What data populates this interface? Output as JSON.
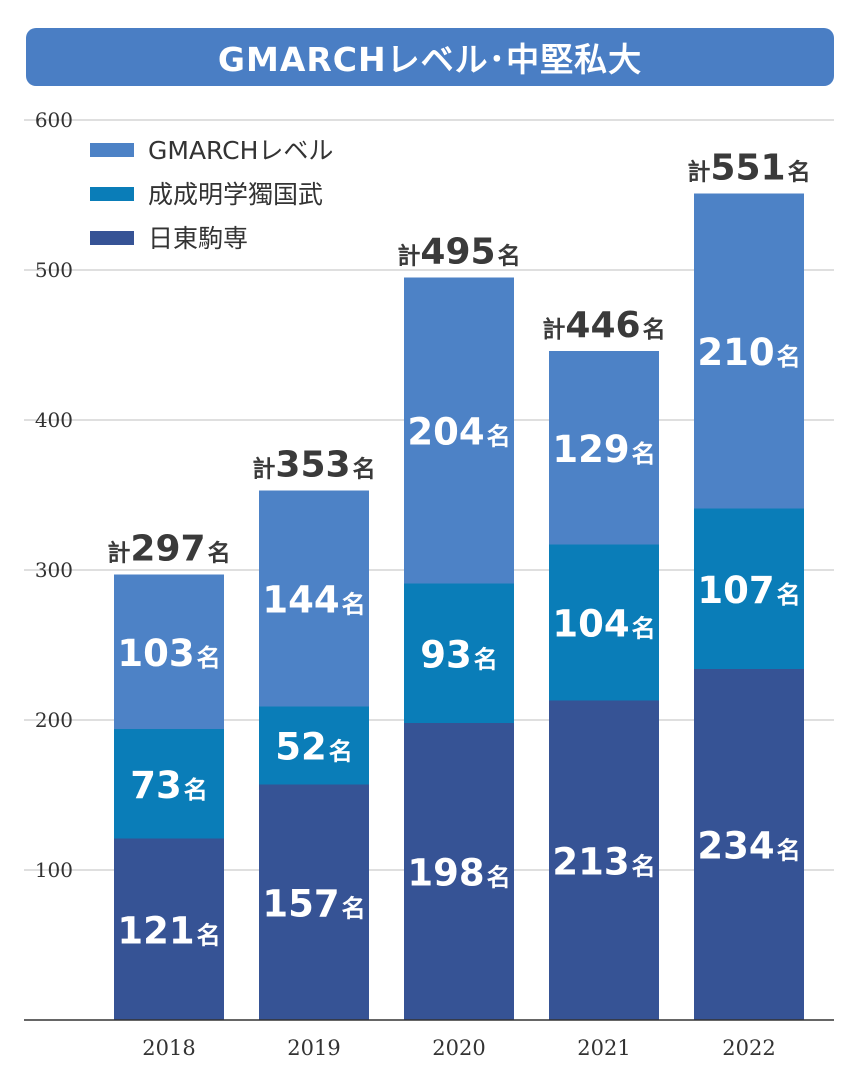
{
  "title": "GMARCHレベル･中堅私大",
  "colors": {
    "title_bg": "#4a7ec4",
    "gmarch": "#4d82c6",
    "seisei": "#0a7db8",
    "nittoukomasen": "#365395",
    "grid": "#cccccc",
    "axis": "#333333"
  },
  "chart_data": {
    "type": "bar",
    "stacked": true,
    "categories": [
      "2018",
      "2019",
      "2020",
      "2021",
      "2022"
    ],
    "series": [
      {
        "name": "日東駒専",
        "values": [
          121,
          157,
          198,
          213,
          234
        ],
        "color": "#365395"
      },
      {
        "name": "成成明学獨国武",
        "values": [
          73,
          52,
          93,
          104,
          107
        ],
        "color": "#0a7db8"
      },
      {
        "name": "GMARCHレベル",
        "values": [
          103,
          144,
          204,
          129,
          210
        ],
        "color": "#4d82c6"
      }
    ],
    "totals": [
      297,
      353,
      495,
      446,
      551
    ],
    "total_prefix": "計",
    "unit": "名",
    "y_ticks": [
      100,
      200,
      300,
      400,
      500,
      600
    ],
    "ylim": [
      0,
      600
    ],
    "grid": true,
    "legend": {
      "position": "top-left",
      "entries": [
        "GMARCHレベル",
        "成成明学獨国武",
        "日東駒専"
      ]
    }
  }
}
